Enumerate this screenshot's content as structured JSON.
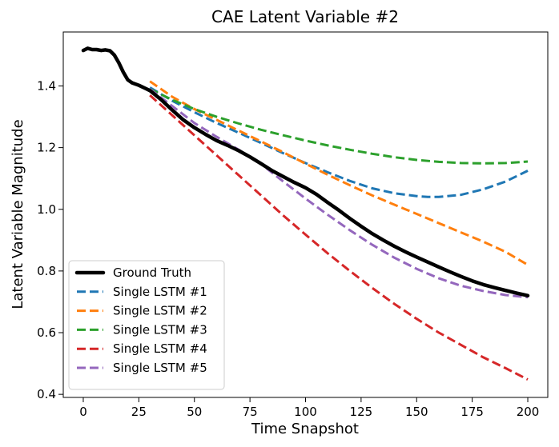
{
  "chart_data": {
    "type": "line",
    "title": "CAE Latent Variable #2",
    "xlabel": "Time Snapshot",
    "ylabel": "Latent Variable Magnitude",
    "xlim": [
      -9,
      209
    ],
    "ylim": [
      0.39,
      1.575
    ],
    "xticks": [
      0,
      25,
      50,
      75,
      100,
      125,
      150,
      175,
      200
    ],
    "yticks": [
      0.4,
      0.6,
      0.8,
      1.0,
      1.2,
      1.4
    ],
    "xtick_labels": [
      "0",
      "25",
      "50",
      "75",
      "100",
      "125",
      "150",
      "175",
      "200"
    ],
    "ytick_labels": [
      "0.4",
      "0.6",
      "0.8",
      "1.0",
      "1.2",
      "1.4"
    ],
    "grid": false,
    "legend_position": "lower-left",
    "series": [
      {
        "name": "Ground Truth",
        "color": "#000000",
        "style": "solid",
        "x": [
          0,
          2,
          4,
          6,
          8,
          10,
          12,
          14,
          16,
          18,
          20,
          22,
          25,
          28,
          30,
          35,
          40,
          45,
          50,
          55,
          60,
          65,
          70,
          75,
          80,
          85,
          90,
          95,
          100,
          105,
          110,
          115,
          120,
          125,
          130,
          135,
          140,
          145,
          150,
          155,
          160,
          165,
          170,
          175,
          180,
          185,
          190,
          195,
          200
        ],
        "y": [
          1.515,
          1.522,
          1.518,
          1.518,
          1.515,
          1.517,
          1.514,
          1.5,
          1.475,
          1.445,
          1.42,
          1.41,
          1.402,
          1.392,
          1.385,
          1.356,
          1.322,
          1.29,
          1.265,
          1.243,
          1.223,
          1.207,
          1.19,
          1.17,
          1.148,
          1.125,
          1.106,
          1.087,
          1.07,
          1.048,
          1.022,
          0.997,
          0.97,
          0.945,
          0.921,
          0.9,
          0.88,
          0.862,
          0.845,
          0.829,
          0.813,
          0.797,
          0.782,
          0.768,
          0.756,
          0.746,
          0.737,
          0.728,
          0.72
        ]
      },
      {
        "name": "Single LSTM #1",
        "color": "#1f77b4",
        "style": "dashed",
        "x": [
          30,
          40,
          50,
          60,
          70,
          80,
          90,
          100,
          110,
          120,
          130,
          140,
          150,
          155,
          160,
          170,
          180,
          190,
          200
        ],
        "y": [
          1.395,
          1.352,
          1.315,
          1.28,
          1.248,
          1.215,
          1.182,
          1.15,
          1.12,
          1.092,
          1.068,
          1.052,
          1.043,
          1.04,
          1.04,
          1.047,
          1.065,
          1.09,
          1.125
        ]
      },
      {
        "name": "Single LSTM #2",
        "color": "#ff7f0e",
        "style": "dashed",
        "x": [
          30,
          40,
          50,
          60,
          70,
          80,
          90,
          100,
          110,
          120,
          130,
          140,
          150,
          160,
          170,
          180,
          190,
          200
        ],
        "y": [
          1.415,
          1.365,
          1.325,
          1.29,
          1.255,
          1.22,
          1.185,
          1.148,
          1.112,
          1.078,
          1.045,
          1.015,
          0.985,
          0.955,
          0.925,
          0.895,
          0.862,
          0.82
        ]
      },
      {
        "name": "Single LSTM #3",
        "color": "#2ca02c",
        "style": "dashed",
        "x": [
          30,
          40,
          50,
          60,
          70,
          80,
          90,
          100,
          110,
          120,
          130,
          140,
          150,
          160,
          170,
          180,
          190,
          200
        ],
        "y": [
          1.39,
          1.355,
          1.325,
          1.3,
          1.278,
          1.258,
          1.24,
          1.223,
          1.207,
          1.193,
          1.18,
          1.169,
          1.16,
          1.154,
          1.15,
          1.149,
          1.15,
          1.155
        ]
      },
      {
        "name": "Single LSTM #4",
        "color": "#d62728",
        "style": "dashed",
        "x": [
          30,
          40,
          50,
          60,
          70,
          80,
          90,
          100,
          110,
          120,
          130,
          140,
          150,
          160,
          170,
          180,
          190,
          200
        ],
        "y": [
          1.37,
          1.305,
          1.24,
          1.175,
          1.11,
          1.045,
          0.98,
          0.918,
          0.857,
          0.8,
          0.745,
          0.693,
          0.645,
          0.6,
          0.56,
          0.52,
          0.485,
          0.448
        ]
      },
      {
        "name": "Single LSTM #5",
        "color": "#9467bd",
        "style": "dashed",
        "x": [
          30,
          40,
          50,
          60,
          70,
          80,
          90,
          100,
          110,
          120,
          130,
          140,
          150,
          160,
          170,
          180,
          190,
          200
        ],
        "y": [
          1.39,
          1.335,
          1.28,
          1.235,
          1.193,
          1.147,
          1.09,
          1.035,
          0.982,
          0.932,
          0.885,
          0.843,
          0.807,
          0.776,
          0.752,
          0.735,
          0.722,
          0.715
        ]
      }
    ]
  }
}
